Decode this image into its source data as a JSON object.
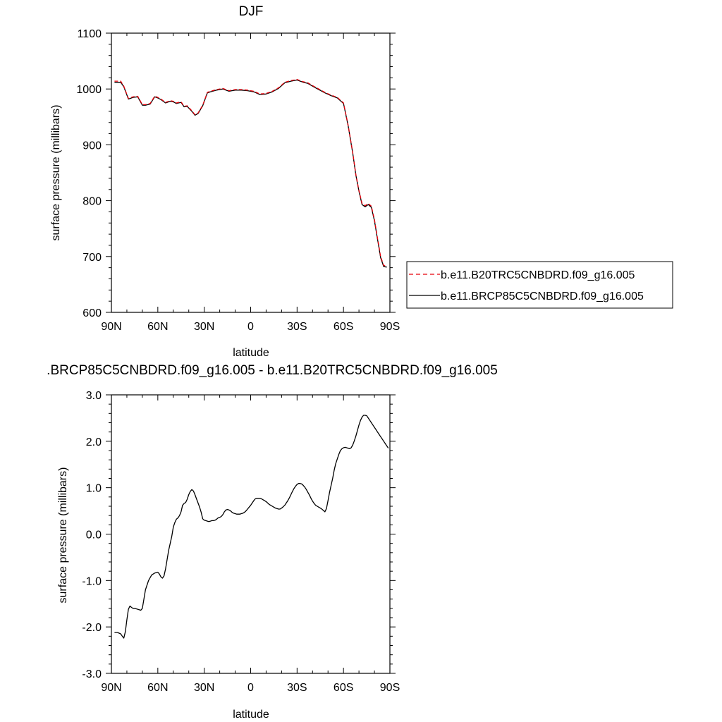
{
  "chart_data": [
    {
      "type": "line",
      "title": "DJF",
      "xlabel": "latitude",
      "ylabel": "surface pressure (millibars)",
      "xlim": [
        90,
        -90
      ],
      "ylim": [
        600,
        1100
      ],
      "x_tick_values": [
        90,
        60,
        30,
        0,
        -30,
        -60,
        -90
      ],
      "x_tick_labels": [
        "90N",
        "60N",
        "30N",
        "0",
        "30S",
        "60S",
        "90S"
      ],
      "y_tick_values": [
        600,
        700,
        800,
        900,
        1000,
        1100
      ],
      "y_tick_labels": [
        "600",
        "700",
        "800",
        "900",
        "1000",
        "1100"
      ],
      "grid": false,
      "legend_position": "right",
      "colors": {
        "b.e11.B20TRC5CNBDRD.f09_g16.005": "#e8000b",
        "b.e11.BRCP85C5CNBDRD.f09_g16.005": "#000000"
      },
      "series": [
        {
          "name": "b.e11.B20TRC5CNBDRD.f09_g16.005",
          "style": "dashed",
          "color": "#e8000b",
          "x": [
            88,
            84,
            82,
            79,
            76,
            73,
            70,
            68,
            65,
            62,
            60,
            58,
            55,
            52,
            50,
            48,
            45,
            43,
            41,
            38,
            36,
            34,
            31,
            28,
            26,
            22,
            18,
            14,
            10,
            6,
            2,
            -2,
            -6,
            -10,
            -14,
            -18,
            -22,
            -26,
            -30,
            -34,
            -37,
            -40,
            -44,
            -48,
            -52,
            -56,
            -60,
            -63,
            -66,
            -68,
            -70,
            -72,
            -74,
            -76,
            -78,
            -80,
            -82,
            -83,
            -84,
            -86,
            -88
          ],
          "y": [
            1014,
            1014,
            1005,
            983,
            986,
            987,
            972,
            972,
            974,
            987,
            985,
            982,
            976,
            979,
            978,
            975,
            977,
            969,
            970,
            961,
            954,
            957,
            971,
            994,
            996,
            999,
            1001,
            997,
            999,
            999,
            998,
            996,
            991,
            992,
            996,
            1002,
            1012,
            1015,
            1017,
            1013,
            1011,
            1006,
            1000,
            994,
            989,
            985,
            975,
            935,
            886,
            847,
            818,
            795,
            791,
            795,
            790,
            766,
            733,
            717,
            700,
            684,
            683
          ]
        },
        {
          "name": "b.e11.BRCP85C5CNBDRD.f09_g16.005",
          "style": "solid",
          "color": "#000000",
          "x": [
            88,
            84,
            82,
            79,
            76,
            73,
            70,
            68,
            65,
            62,
            60,
            58,
            55,
            52,
            50,
            48,
            45,
            43,
            41,
            38,
            36,
            34,
            31,
            28,
            26,
            22,
            18,
            14,
            10,
            6,
            2,
            -2,
            -6,
            -10,
            -14,
            -18,
            -22,
            -26,
            -30,
            -34,
            -37,
            -40,
            -44,
            -48,
            -52,
            -56,
            -60,
            -63,
            -66,
            -68,
            -70,
            -72,
            -74,
            -76,
            -78,
            -80,
            -82,
            -83,
            -84,
            -86,
            -88
          ],
          "y": [
            1012,
            1012,
            1004,
            982,
            985,
            986,
            971,
            971,
            973,
            986,
            984,
            981,
            975,
            978,
            977,
            974,
            976,
            968,
            969,
            960,
            953,
            956,
            970,
            993,
            995,
            998,
            1000,
            996,
            998,
            998,
            997,
            995,
            990,
            991,
            995,
            1001,
            1011,
            1014,
            1016,
            1012,
            1010,
            1005,
            999,
            993,
            988,
            984,
            974,
            934,
            885,
            846,
            817,
            793,
            789,
            793,
            788,
            764,
            731,
            715,
            698,
            682,
            681
          ]
        }
      ]
    },
    {
      "type": "line",
      "title": ".BRCP85C5CNBDRD.f09_g16.005 - b.e11.B20TRC5CNBDRD.f09_g16.005",
      "xlabel": "latitude",
      "ylabel": "surface pressure (millibars)",
      "xlim": [
        90,
        -90
      ],
      "ylim": [
        -3.0,
        3.0
      ],
      "x_tick_values": [
        90,
        60,
        30,
        0,
        -30,
        -60,
        -90
      ],
      "x_tick_labels": [
        "90N",
        "60N",
        "30N",
        "0",
        "30S",
        "60S",
        "90S"
      ],
      "y_tick_values": [
        -3,
        -2,
        -1,
        0,
        1,
        2,
        3
      ],
      "y_tick_labels": [
        "-3.0",
        "-2.0",
        "-1.0",
        "0.0",
        "1.0",
        "2.0",
        "3.0"
      ],
      "grid": false,
      "series": [
        {
          "style": "solid",
          "color": "#000000",
          "x": [
            88,
            86,
            84,
            83,
            82,
            81,
            80,
            79,
            78,
            77,
            76,
            75,
            73,
            71,
            70,
            69,
            68,
            66,
            64,
            62,
            61,
            60,
            59,
            58,
            57,
            56,
            55,
            54,
            53,
            52,
            51,
            50,
            49,
            48,
            47,
            46,
            45,
            44,
            43,
            42,
            41,
            40,
            39,
            38,
            37,
            36,
            35,
            34,
            33,
            32,
            31,
            30,
            29,
            28,
            27,
            26,
            25,
            24,
            23,
            22,
            21,
            20,
            19,
            18,
            17,
            16,
            15,
            14,
            13,
            12,
            11,
            10,
            9,
            8,
            7,
            6,
            5,
            4,
            3,
            2,
            1,
            0,
            -1,
            -2,
            -3,
            -4,
            -5,
            -6,
            -7,
            -8,
            -9,
            -10,
            -11,
            -12,
            -13,
            -14,
            -15,
            -16,
            -17,
            -18,
            -19,
            -20,
            -21,
            -22,
            -23,
            -24,
            -25,
            -26,
            -27,
            -28,
            -29,
            -30,
            -31,
            -32,
            -33,
            -34,
            -35,
            -36,
            -37,
            -38,
            -39,
            -40,
            -41,
            -42,
            -43,
            -44,
            -45,
            -46,
            -47,
            -48,
            -49,
            -50,
            -51,
            -52,
            -53,
            -54,
            -55,
            -56,
            -57,
            -58,
            -59,
            -60,
            -61,
            -62,
            -63,
            -64,
            -65,
            -66,
            -67,
            -68,
            -69,
            -70,
            -71,
            -72,
            -73,
            -74,
            -75,
            -76,
            -77,
            -78,
            -79,
            -80,
            -81,
            -82,
            -83,
            -84,
            -85,
            -86,
            -87,
            -88,
            -89
          ],
          "y": [
            -2.12,
            -2.12,
            -2.15,
            -2.2,
            -2.24,
            -2.1,
            -1.85,
            -1.62,
            -1.55,
            -1.58,
            -1.6,
            -1.6,
            -1.62,
            -1.64,
            -1.6,
            -1.4,
            -1.2,
            -1.0,
            -0.88,
            -0.84,
            -0.83,
            -0.82,
            -0.86,
            -0.92,
            -0.95,
            -0.9,
            -0.75,
            -0.55,
            -0.35,
            -0.2,
            -0.05,
            0.15,
            0.25,
            0.32,
            0.35,
            0.4,
            0.48,
            0.62,
            0.66,
            0.68,
            0.75,
            0.85,
            0.92,
            0.96,
            0.93,
            0.85,
            0.76,
            0.67,
            0.58,
            0.47,
            0.33,
            0.3,
            0.29,
            0.28,
            0.27,
            0.28,
            0.29,
            0.29,
            0.3,
            0.32,
            0.35,
            0.36,
            0.38,
            0.42,
            0.48,
            0.52,
            0.53,
            0.52,
            0.5,
            0.47,
            0.45,
            0.44,
            0.43,
            0.43,
            0.43,
            0.44,
            0.45,
            0.47,
            0.5,
            0.54,
            0.58,
            0.62,
            0.67,
            0.72,
            0.76,
            0.77,
            0.77,
            0.77,
            0.76,
            0.74,
            0.72,
            0.7,
            0.67,
            0.64,
            0.62,
            0.6,
            0.58,
            0.56,
            0.55,
            0.54,
            0.54,
            0.56,
            0.59,
            0.62,
            0.67,
            0.72,
            0.78,
            0.85,
            0.92,
            0.98,
            1.03,
            1.07,
            1.09,
            1.09,
            1.08,
            1.05,
            1.01,
            0.96,
            0.9,
            0.84,
            0.77,
            0.71,
            0.66,
            0.62,
            0.6,
            0.58,
            0.56,
            0.54,
            0.51,
            0.48,
            0.55,
            0.72,
            0.9,
            1.05,
            1.2,
            1.38,
            1.52,
            1.62,
            1.72,
            1.8,
            1.84,
            1.86,
            1.87,
            1.86,
            1.85,
            1.84,
            1.86,
            1.92,
            2.01,
            2.11,
            2.23,
            2.35,
            2.45,
            2.52,
            2.56,
            2.56,
            2.55,
            2.5,
            2.45,
            2.4,
            2.35,
            2.3,
            2.25,
            2.2,
            2.15,
            2.1,
            2.05,
            2.0,
            1.95,
            1.9,
            1.85
          ]
        }
      ]
    }
  ]
}
